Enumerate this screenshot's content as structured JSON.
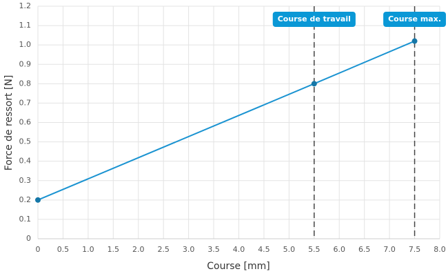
{
  "chart_data": {
    "type": "line",
    "x_label": "Course [mm]",
    "y_label": "Force de ressort [N]",
    "x": [
      0,
      5.5,
      7.5
    ],
    "series": [
      {
        "color": "#1a93d1",
        "values": [
          0.2,
          0.8,
          1.02
        ]
      }
    ],
    "xlim": [
      0,
      8
    ],
    "ylim": [
      0,
      1.2
    ],
    "xticks": [
      0,
      0.5,
      {
        "value": 1,
        "label": "1.0"
      },
      1.5,
      {
        "value": 2,
        "label": "2.0"
      },
      2.5,
      {
        "value": 3,
        "label": "3.0"
      },
      3.5,
      {
        "value": 4,
        "label": "4.0"
      },
      4.5,
      {
        "value": 5,
        "label": "5.0"
      },
      5.5,
      {
        "value": 6,
        "label": "6.0"
      },
      6.5,
      {
        "value": 7,
        "label": "7.0"
      },
      7.5,
      {
        "value": 8,
        "label": "8.0"
      }
    ],
    "yticks": [
      0,
      0.1,
      0.2,
      0.3,
      0.4,
      0.5,
      0.6,
      0.7,
      0.8,
      0.9,
      {
        "value": 1,
        "label": "1.0"
      },
      1.1,
      1.2
    ],
    "grid": true,
    "annotations": [
      {
        "x": 5.5,
        "label": "Course de travail"
      },
      {
        "x": 7.5,
        "label": "Course max."
      }
    ]
  }
}
